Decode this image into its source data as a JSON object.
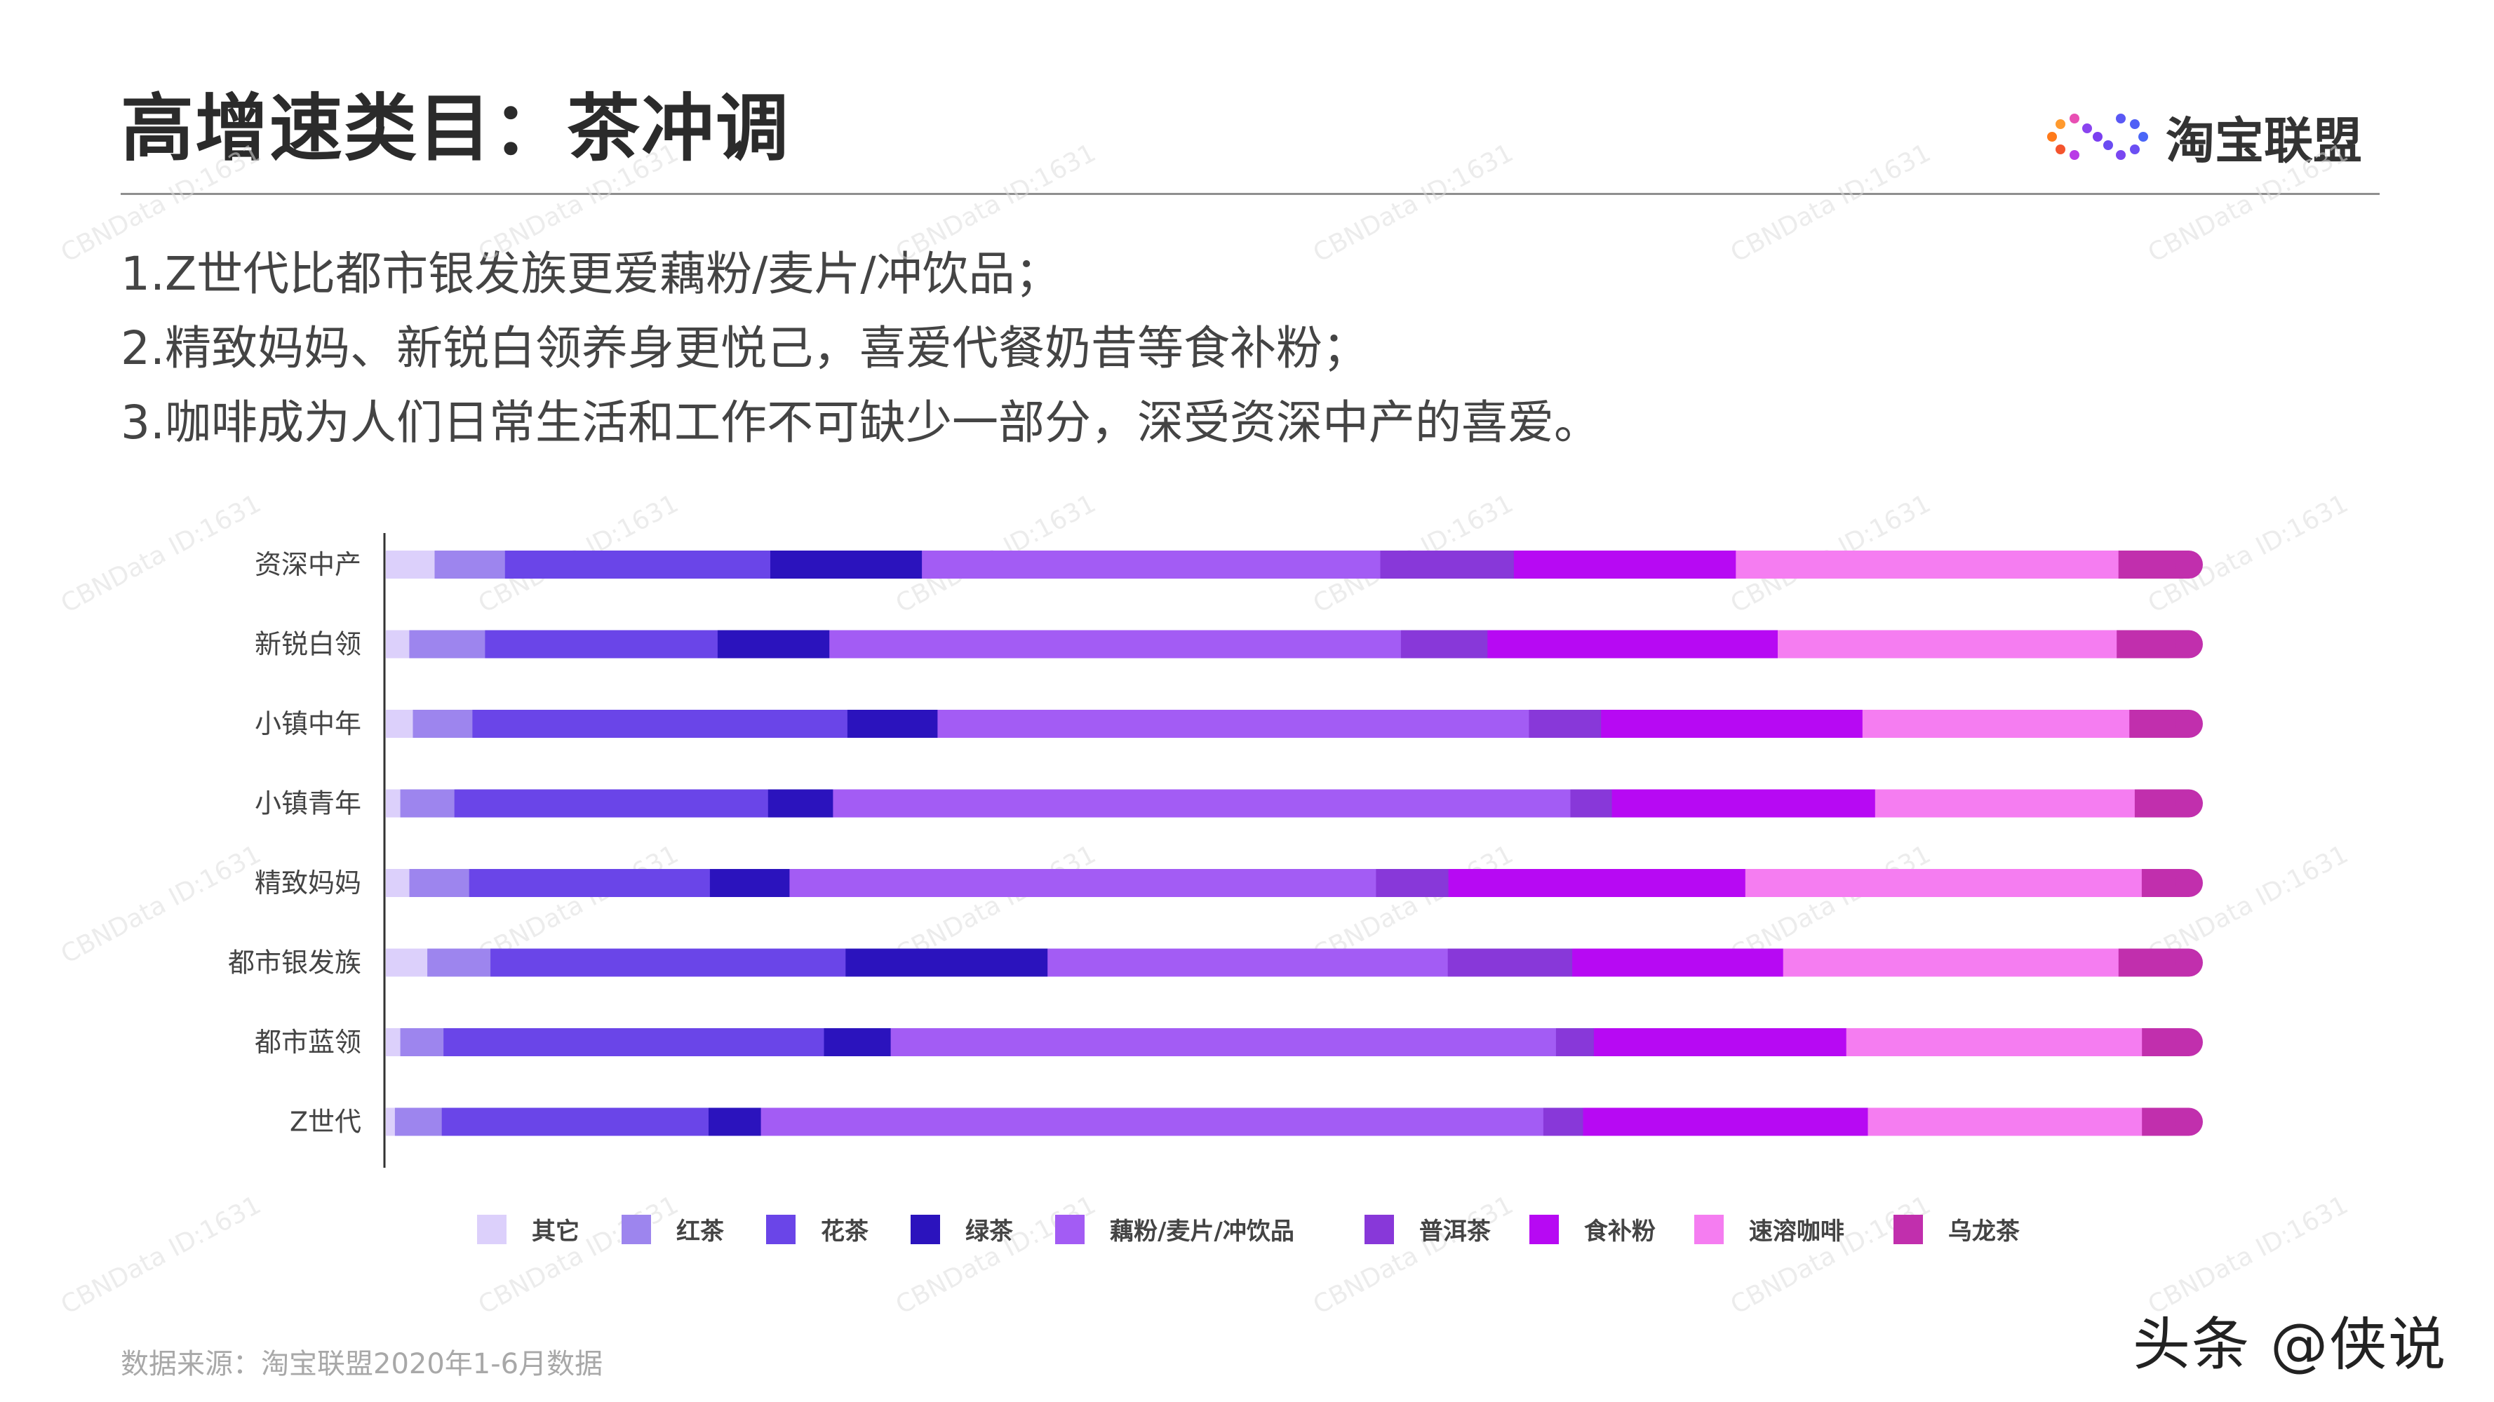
{
  "title": "高增速类目：茶冲调",
  "logo": {
    "name": "淘宝联盟",
    "icon": "dots-infinity-logo-icon"
  },
  "notes": [
    "1.Z世代比都市银发族更爱藕粉/麦片/冲饮品；",
    "2.精致妈妈、新锐白领养身更悦己，喜爱代餐奶昔等食补粉；",
    "3.咖啡成为人们日常生活和工作不可缺少一部分，深受资深中产的喜爱。"
  ],
  "source": "数据来源：淘宝联盟2020年1-6月数据",
  "corner_mark": "头条 @侠说",
  "watermark": "CBNData ID:1631",
  "chart_data": {
    "type": "bar",
    "orientation": "horizontal",
    "stacked": true,
    "percent_stacked": true,
    "categories": [
      "资深中产",
      "新锐白领",
      "小镇中年",
      "小镇青年",
      "精致妈妈",
      "都市银发族",
      "都市蓝领",
      "Z世代"
    ],
    "series": [
      {
        "name": "其它",
        "color": "#dcd0fb",
        "values": [
          2.7,
          1.3,
          1.5,
          0.8,
          1.3,
          2.3,
          0.8,
          0.5
        ]
      },
      {
        "name": "红茶",
        "color": "#9d85ee",
        "values": [
          3.9,
          4.2,
          3.3,
          3.0,
          3.3,
          3.5,
          2.4,
          2.6
        ]
      },
      {
        "name": "花茶",
        "color": "#6a45e8",
        "values": [
          14.7,
          12.9,
          20.8,
          17.4,
          13.3,
          19.7,
          21.1,
          14.8
        ]
      },
      {
        "name": "绿茶",
        "color": "#2b13bd",
        "values": [
          8.4,
          6.2,
          5.0,
          3.6,
          4.4,
          11.2,
          3.7,
          2.9
        ]
      },
      {
        "name": "藕粉/麦片/冲饮品",
        "color": "#a35cf4",
        "values": [
          25.4,
          31.7,
          32.8,
          40.9,
          32.4,
          22.2,
          36.9,
          43.4
        ]
      },
      {
        "name": "普洱茶",
        "color": "#8838d9",
        "values": [
          7.4,
          4.8,
          4.0,
          2.3,
          4.0,
          6.9,
          2.1,
          2.2
        ]
      },
      {
        "name": "食补粉",
        "color": "#b709f3",
        "values": [
          12.3,
          16.1,
          14.5,
          14.6,
          16.4,
          11.7,
          14.0,
          15.8
        ]
      },
      {
        "name": "速溶咖啡",
        "color": "#f57df1",
        "values": [
          21.2,
          18.8,
          14.8,
          14.4,
          21.9,
          18.6,
          16.4,
          15.2
        ]
      },
      {
        "name": "乌龙茶",
        "color": "#c12fad",
        "values": [
          3.9,
          4.0,
          3.3,
          3.0,
          2.6,
          3.9,
          2.6,
          2.6
        ]
      }
    ],
    "xlim": [
      0,
      100
    ],
    "grid": false,
    "legend": "bottom"
  }
}
